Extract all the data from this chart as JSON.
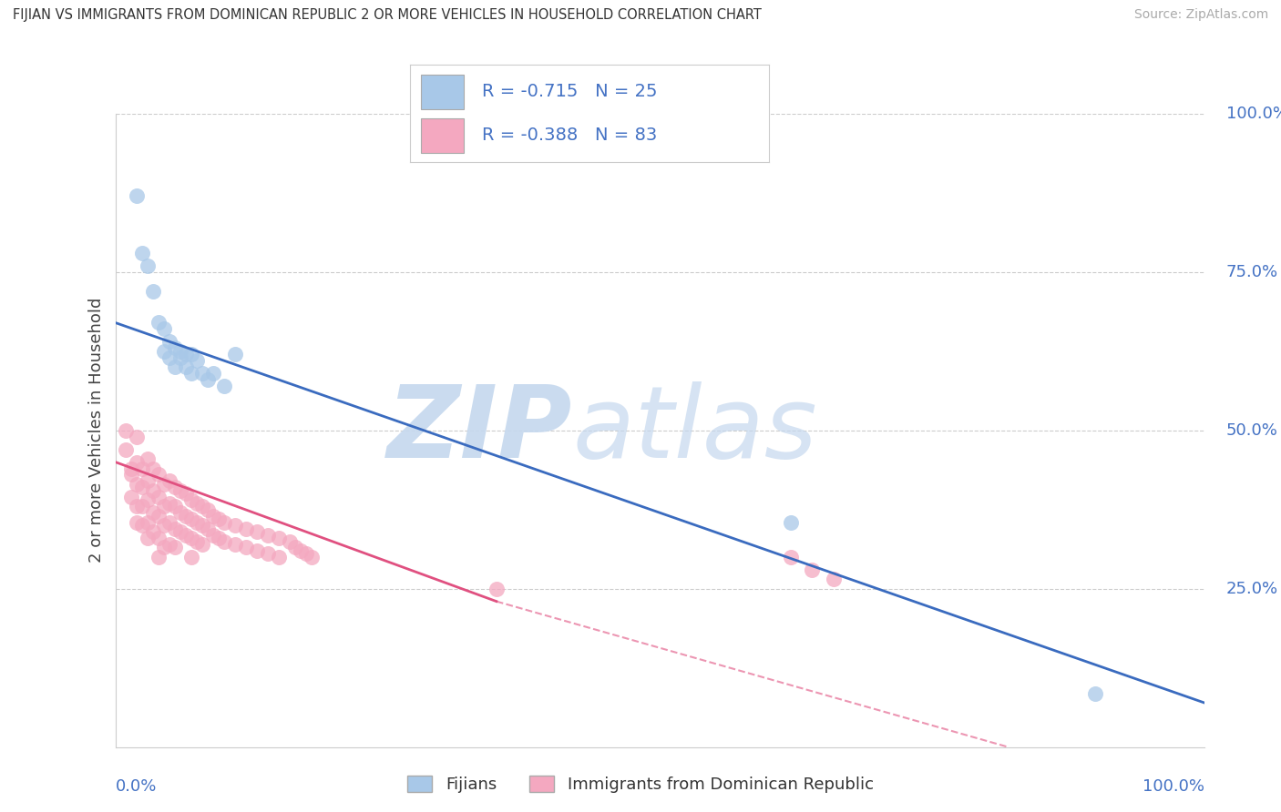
{
  "title": "FIJIAN VS IMMIGRANTS FROM DOMINICAN REPUBLIC 2 OR MORE VEHICLES IN HOUSEHOLD CORRELATION CHART",
  "source": "Source: ZipAtlas.com",
  "ylabel": "2 or more Vehicles in Household",
  "legend_fijians": "Fijians",
  "legend_immigrants": "Immigrants from Dominican Republic",
  "fijian_R": "-0.715",
  "fijian_N": "25",
  "immigrant_R": "-0.388",
  "immigrant_N": "83",
  "fijian_color": "#a8c8e8",
  "immigrant_color": "#f4a8c0",
  "fijian_line_color": "#3a6bbf",
  "immigrant_line_color": "#e05080",
  "text_color": "#4472c4",
  "watermark_zip_color": "#c5d8ee",
  "watermark_atlas_color": "#c5d8ee",
  "fijian_points": [
    [
      0.02,
      0.87
    ],
    [
      0.025,
      0.78
    ],
    [
      0.03,
      0.76
    ],
    [
      0.035,
      0.72
    ],
    [
      0.04,
      0.67
    ],
    [
      0.045,
      0.66
    ],
    [
      0.045,
      0.625
    ],
    [
      0.05,
      0.64
    ],
    [
      0.05,
      0.615
    ],
    [
      0.055,
      0.63
    ],
    [
      0.055,
      0.6
    ],
    [
      0.06,
      0.625
    ],
    [
      0.06,
      0.615
    ],
    [
      0.065,
      0.62
    ],
    [
      0.065,
      0.6
    ],
    [
      0.07,
      0.59
    ],
    [
      0.07,
      0.62
    ],
    [
      0.075,
      0.61
    ],
    [
      0.08,
      0.59
    ],
    [
      0.085,
      0.58
    ],
    [
      0.09,
      0.59
    ],
    [
      0.1,
      0.57
    ],
    [
      0.11,
      0.62
    ],
    [
      0.62,
      0.355
    ],
    [
      0.9,
      0.085
    ]
  ],
  "immigrant_points": [
    [
      0.01,
      0.47
    ],
    [
      0.01,
      0.5
    ],
    [
      0.015,
      0.44
    ],
    [
      0.015,
      0.43
    ],
    [
      0.015,
      0.395
    ],
    [
      0.02,
      0.49
    ],
    [
      0.02,
      0.45
    ],
    [
      0.02,
      0.415
    ],
    [
      0.02,
      0.38
    ],
    [
      0.02,
      0.355
    ],
    [
      0.025,
      0.44
    ],
    [
      0.025,
      0.41
    ],
    [
      0.025,
      0.38
    ],
    [
      0.025,
      0.35
    ],
    [
      0.03,
      0.455
    ],
    [
      0.03,
      0.42
    ],
    [
      0.03,
      0.39
    ],
    [
      0.03,
      0.355
    ],
    [
      0.03,
      0.33
    ],
    [
      0.035,
      0.44
    ],
    [
      0.035,
      0.405
    ],
    [
      0.035,
      0.37
    ],
    [
      0.035,
      0.34
    ],
    [
      0.04,
      0.43
    ],
    [
      0.04,
      0.395
    ],
    [
      0.04,
      0.365
    ],
    [
      0.04,
      0.33
    ],
    [
      0.04,
      0.3
    ],
    [
      0.045,
      0.415
    ],
    [
      0.045,
      0.38
    ],
    [
      0.045,
      0.35
    ],
    [
      0.045,
      0.315
    ],
    [
      0.05,
      0.42
    ],
    [
      0.05,
      0.385
    ],
    [
      0.05,
      0.355
    ],
    [
      0.05,
      0.32
    ],
    [
      0.055,
      0.41
    ],
    [
      0.055,
      0.38
    ],
    [
      0.055,
      0.345
    ],
    [
      0.055,
      0.315
    ],
    [
      0.06,
      0.405
    ],
    [
      0.06,
      0.37
    ],
    [
      0.06,
      0.34
    ],
    [
      0.065,
      0.4
    ],
    [
      0.065,
      0.365
    ],
    [
      0.065,
      0.335
    ],
    [
      0.07,
      0.39
    ],
    [
      0.07,
      0.36
    ],
    [
      0.07,
      0.33
    ],
    [
      0.07,
      0.3
    ],
    [
      0.075,
      0.385
    ],
    [
      0.075,
      0.355
    ],
    [
      0.075,
      0.325
    ],
    [
      0.08,
      0.38
    ],
    [
      0.08,
      0.35
    ],
    [
      0.08,
      0.32
    ],
    [
      0.085,
      0.375
    ],
    [
      0.085,
      0.345
    ],
    [
      0.09,
      0.365
    ],
    [
      0.09,
      0.335
    ],
    [
      0.095,
      0.36
    ],
    [
      0.095,
      0.33
    ],
    [
      0.1,
      0.355
    ],
    [
      0.1,
      0.325
    ],
    [
      0.11,
      0.35
    ],
    [
      0.11,
      0.32
    ],
    [
      0.12,
      0.345
    ],
    [
      0.12,
      0.315
    ],
    [
      0.13,
      0.34
    ],
    [
      0.13,
      0.31
    ],
    [
      0.14,
      0.335
    ],
    [
      0.14,
      0.305
    ],
    [
      0.15,
      0.33
    ],
    [
      0.15,
      0.3
    ],
    [
      0.16,
      0.325
    ],
    [
      0.165,
      0.315
    ],
    [
      0.17,
      0.31
    ],
    [
      0.175,
      0.305
    ],
    [
      0.18,
      0.3
    ],
    [
      0.35,
      0.25
    ],
    [
      0.62,
      0.3
    ],
    [
      0.64,
      0.28
    ],
    [
      0.66,
      0.265
    ]
  ]
}
